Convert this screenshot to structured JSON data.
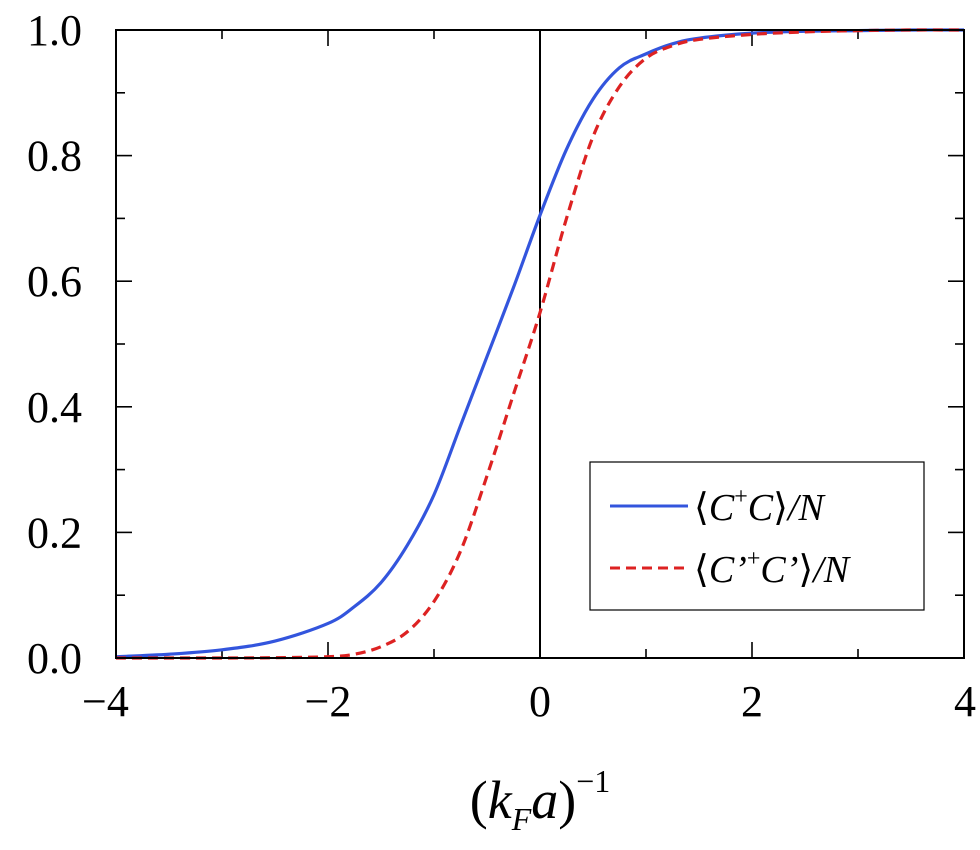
{
  "chart_data": {
    "type": "line",
    "xlabel": "(k_F a)^-1",
    "xlabel_parts": {
      "open": "(",
      "k": "k",
      "sub": "F",
      "a": "a",
      "close": ")",
      "sup": "−1"
    },
    "ylabel": "",
    "xlim": [
      -4,
      4
    ],
    "ylim": [
      0,
      1
    ],
    "x_ticks": [
      -4,
      -2,
      0,
      2,
      4
    ],
    "x_tick_labels": [
      "−4",
      "−2",
      "0",
      "2",
      "4"
    ],
    "y_ticks": [
      0,
      0.2,
      0.4,
      0.6,
      0.8,
      1.0
    ],
    "y_tick_labels": [
      "0.0",
      "0.2",
      "0.4",
      "0.6",
      "0.8",
      "1.0"
    ],
    "vertical_reference_line_x": 0,
    "grid": false,
    "legend_position": "lower-right",
    "series": [
      {
        "name": "⟨C+C⟩/N",
        "legend": {
          "open": "⟨",
          "c1": "C",
          "sup": "+",
          "c2": "C",
          "close": "⟩",
          "suffix": "/N"
        },
        "color": "#3355dd",
        "style": "solid",
        "x": [
          -4,
          -3.5,
          -3,
          -2.5,
          -2,
          -1.75,
          -1.5,
          -1.25,
          -1,
          -0.75,
          -0.5,
          -0.25,
          0,
          0.25,
          0.5,
          0.75,
          1,
          1.25,
          1.5,
          2,
          2.5,
          3,
          3.5,
          4
        ],
        "y": [
          0.002,
          0.006,
          0.013,
          0.027,
          0.055,
          0.082,
          0.12,
          0.18,
          0.26,
          0.37,
          0.48,
          0.59,
          0.705,
          0.81,
          0.89,
          0.94,
          0.962,
          0.978,
          0.987,
          0.995,
          0.998,
          0.999,
          1.0,
          1.0
        ]
      },
      {
        "name": "⟨C'+C'⟩/N",
        "legend": {
          "open": "⟨",
          "c1": "C’",
          "sup": "+",
          "c2": "C’",
          "close": "⟩",
          "suffix": "/N"
        },
        "color": "#dd2222",
        "style": "dashed",
        "x": [
          -4,
          -3,
          -2.5,
          -2,
          -1.75,
          -1.5,
          -1.25,
          -1,
          -0.75,
          -0.5,
          -0.25,
          0,
          0.25,
          0.5,
          0.75,
          1,
          1.25,
          1.5,
          2,
          2.5,
          3,
          3.5,
          4
        ],
        "y": [
          0.0,
          0.0,
          0.0005,
          0.002,
          0.006,
          0.018,
          0.042,
          0.09,
          0.17,
          0.29,
          0.42,
          0.55,
          0.7,
          0.83,
          0.91,
          0.955,
          0.975,
          0.985,
          0.993,
          0.997,
          0.999,
          1.0,
          1.0
        ]
      }
    ]
  }
}
